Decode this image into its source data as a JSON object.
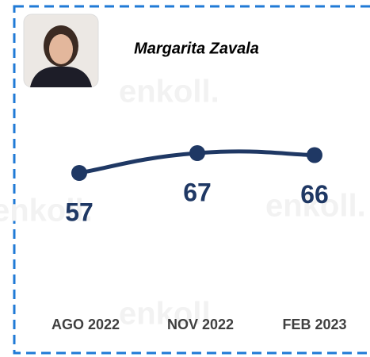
{
  "chart_data": {
    "type": "line",
    "title": "Margarita Zavala",
    "watermark": "enkoll.",
    "categories": [
      "AGO 2022",
      "NOV 2022",
      "FEB 2023"
    ],
    "values": [
      57,
      67,
      66
    ],
    "color": "#1f3864"
  }
}
